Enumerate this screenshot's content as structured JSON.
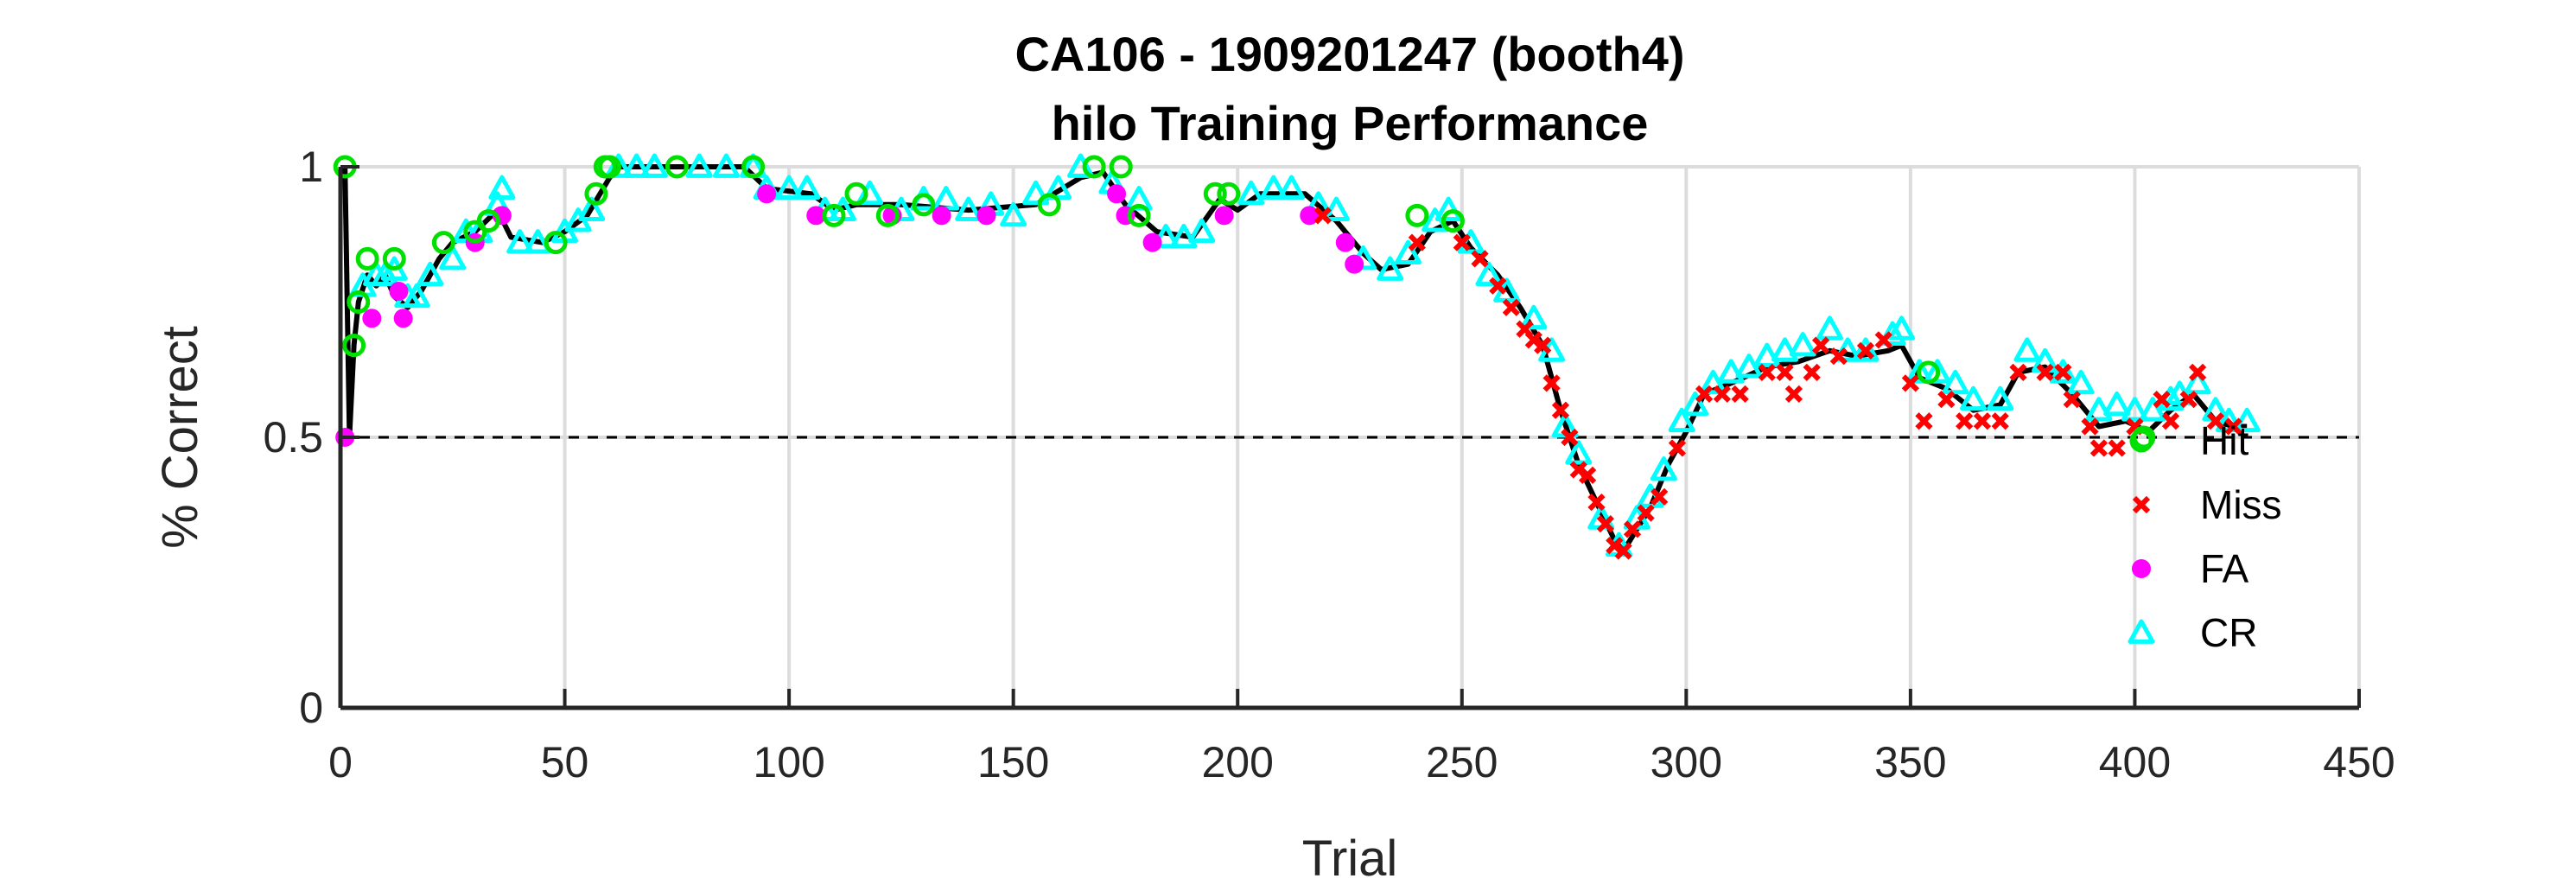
{
  "chart_data": {
    "type": "scatter",
    "title": "CA106 - 1909201247 (booth4)",
    "subtitle": "hilo Training Performance",
    "xlabel": "Trial",
    "ylabel": "% Correct",
    "xlim": [
      0,
      450
    ],
    "ylim": [
      0,
      1
    ],
    "xticks": [
      "0",
      "50",
      "100",
      "150",
      "200",
      "250",
      "300",
      "350",
      "400",
      "450"
    ],
    "yticks": [
      "0",
      "0.5",
      "1"
    ],
    "grid": true,
    "chance_line": 0.5,
    "legend_position": "right-inside",
    "colors": {
      "line": "#000000",
      "hit": "#00e000",
      "miss": "#ff0000",
      "fa": "#ff00ff",
      "cr": "#00ffff",
      "grid": "#dcdcdc"
    },
    "performance_keypoints": [
      [
        1,
        1.0
      ],
      [
        2,
        0.5
      ],
      [
        3,
        0.67
      ],
      [
        4,
        0.75
      ],
      [
        6,
        0.8
      ],
      [
        8,
        0.78
      ],
      [
        10,
        0.8
      ],
      [
        12,
        0.76
      ],
      [
        15,
        0.74
      ],
      [
        18,
        0.77
      ],
      [
        22,
        0.83
      ],
      [
        25,
        0.86
      ],
      [
        30,
        0.88
      ],
      [
        35,
        0.92
      ],
      [
        38,
        0.87
      ],
      [
        45,
        0.86
      ],
      [
        50,
        0.88
      ],
      [
        55,
        0.91
      ],
      [
        60,
        0.98
      ],
      [
        62,
        1.0
      ],
      [
        90,
        1.0
      ],
      [
        95,
        0.96
      ],
      [
        105,
        0.95
      ],
      [
        110,
        0.92
      ],
      [
        115,
        0.93
      ],
      [
        125,
        0.93
      ],
      [
        140,
        0.92
      ],
      [
        155,
        0.93
      ],
      [
        165,
        0.98
      ],
      [
        170,
        0.99
      ],
      [
        175,
        0.93
      ],
      [
        182,
        0.88
      ],
      [
        190,
        0.87
      ],
      [
        196,
        0.94
      ],
      [
        200,
        0.92
      ],
      [
        205,
        0.95
      ],
      [
        215,
        0.95
      ],
      [
        222,
        0.9
      ],
      [
        228,
        0.84
      ],
      [
        232,
        0.81
      ],
      [
        238,
        0.82
      ],
      [
        243,
        0.88
      ],
      [
        248,
        0.9
      ],
      [
        252,
        0.85
      ],
      [
        258,
        0.8
      ],
      [
        263,
        0.74
      ],
      [
        268,
        0.67
      ],
      [
        272,
        0.55
      ],
      [
        276,
        0.45
      ],
      [
        280,
        0.38
      ],
      [
        284,
        0.31
      ],
      [
        286,
        0.29
      ],
      [
        289,
        0.33
      ],
      [
        292,
        0.37
      ],
      [
        296,
        0.45
      ],
      [
        300,
        0.51
      ],
      [
        304,
        0.58
      ],
      [
        310,
        0.6
      ],
      [
        318,
        0.63
      ],
      [
        325,
        0.64
      ],
      [
        332,
        0.66
      ],
      [
        338,
        0.65
      ],
      [
        345,
        0.66
      ],
      [
        348,
        0.67
      ],
      [
        352,
        0.61
      ],
      [
        358,
        0.59
      ],
      [
        364,
        0.55
      ],
      [
        370,
        0.56
      ],
      [
        374,
        0.62
      ],
      [
        380,
        0.63
      ],
      [
        386,
        0.58
      ],
      [
        392,
        0.52
      ],
      [
        398,
        0.53
      ],
      [
        403,
        0.51
      ],
      [
        408,
        0.55
      ],
      [
        413,
        0.58
      ],
      [
        418,
        0.53
      ],
      [
        422,
        0.52
      ],
      [
        425,
        0.52
      ]
    ],
    "series": [
      {
        "name": "Hit",
        "points": [
          [
            1,
            1.0
          ],
          [
            3,
            0.67
          ],
          [
            4,
            0.75
          ],
          [
            6,
            0.83
          ],
          [
            12,
            0.83
          ],
          [
            23,
            0.86
          ],
          [
            30,
            0.88
          ],
          [
            33,
            0.9
          ],
          [
            48,
            0.86
          ],
          [
            57,
            0.95
          ],
          [
            59,
            1.0
          ],
          [
            60,
            1.0
          ],
          [
            75,
            1.0
          ],
          [
            92,
            1.0
          ],
          [
            110,
            0.91
          ],
          [
            115,
            0.95
          ],
          [
            122,
            0.91
          ],
          [
            130,
            0.93
          ],
          [
            158,
            0.93
          ],
          [
            168,
            1.0
          ],
          [
            174,
            1.0
          ],
          [
            178,
            0.91
          ],
          [
            195,
            0.95
          ],
          [
            198,
            0.95
          ],
          [
            240,
            0.91
          ],
          [
            248,
            0.9
          ],
          [
            354,
            0.62
          ],
          [
            402,
            0.5
          ]
        ]
      },
      {
        "name": "Miss",
        "points": [
          [
            219,
            0.91
          ],
          [
            240,
            0.86
          ],
          [
            250,
            0.86
          ],
          [
            254,
            0.83
          ],
          [
            258,
            0.78
          ],
          [
            261,
            0.74
          ],
          [
            264,
            0.7
          ],
          [
            266,
            0.68
          ],
          [
            268,
            0.67
          ],
          [
            270,
            0.6
          ],
          [
            272,
            0.55
          ],
          [
            274,
            0.5
          ],
          [
            276,
            0.44
          ],
          [
            278,
            0.43
          ],
          [
            280,
            0.38
          ],
          [
            282,
            0.34
          ],
          [
            284,
            0.3
          ],
          [
            286,
            0.29
          ],
          [
            288,
            0.33
          ],
          [
            291,
            0.36
          ],
          [
            294,
            0.39
          ],
          [
            298,
            0.48
          ],
          [
            304,
            0.58
          ],
          [
            308,
            0.58
          ],
          [
            312,
            0.58
          ],
          [
            318,
            0.62
          ],
          [
            322,
            0.62
          ],
          [
            324,
            0.58
          ],
          [
            328,
            0.62
          ],
          [
            330,
            0.67
          ],
          [
            334,
            0.65
          ],
          [
            340,
            0.66
          ],
          [
            344,
            0.68
          ],
          [
            350,
            0.6
          ],
          [
            353,
            0.53
          ],
          [
            358,
            0.57
          ],
          [
            362,
            0.53
          ],
          [
            366,
            0.53
          ],
          [
            370,
            0.53
          ],
          [
            374,
            0.62
          ],
          [
            380,
            0.62
          ],
          [
            384,
            0.62
          ],
          [
            386,
            0.57
          ],
          [
            390,
            0.52
          ],
          [
            392,
            0.48
          ],
          [
            396,
            0.48
          ],
          [
            400,
            0.52
          ],
          [
            406,
            0.57
          ],
          [
            408,
            0.53
          ],
          [
            412,
            0.57
          ],
          [
            414,
            0.62
          ],
          [
            418,
            0.53
          ],
          [
            422,
            0.52
          ]
        ]
      },
      {
        "name": "FA",
        "points": [
          [
            1,
            0.5
          ],
          [
            7,
            0.72
          ],
          [
            13,
            0.77
          ],
          [
            14,
            0.72
          ],
          [
            30,
            0.86
          ],
          [
            36,
            0.91
          ],
          [
            95,
            0.95
          ],
          [
            106,
            0.91
          ],
          [
            123,
            0.91
          ],
          [
            134,
            0.91
          ],
          [
            144,
            0.91
          ],
          [
            173,
            0.95
          ],
          [
            175,
            0.91
          ],
          [
            181,
            0.86
          ],
          [
            197,
            0.91
          ],
          [
            216,
            0.91
          ],
          [
            224,
            0.86
          ],
          [
            226,
            0.82
          ]
        ]
      },
      {
        "name": "CR",
        "points": [
          [
            5,
            0.78
          ],
          [
            8,
            0.8
          ],
          [
            10,
            0.8
          ],
          [
            12,
            0.81
          ],
          [
            15,
            0.76
          ],
          [
            17,
            0.76
          ],
          [
            20,
            0.8
          ],
          [
            25,
            0.83
          ],
          [
            28,
            0.88
          ],
          [
            31,
            0.88
          ],
          [
            35,
            0.93
          ],
          [
            36,
            0.96
          ],
          [
            40,
            0.86
          ],
          [
            44,
            0.86
          ],
          [
            50,
            0.88
          ],
          [
            53,
            0.9
          ],
          [
            56,
            0.92
          ],
          [
            62,
            1.0
          ],
          [
            66,
            1.0
          ],
          [
            70,
            1.0
          ],
          [
            80,
            1.0
          ],
          [
            86,
            1.0
          ],
          [
            92,
            1.0
          ],
          [
            95,
            0.96
          ],
          [
            100,
            0.96
          ],
          [
            104,
            0.96
          ],
          [
            108,
            0.92
          ],
          [
            112,
            0.92
          ],
          [
            118,
            0.95
          ],
          [
            125,
            0.92
          ],
          [
            130,
            0.94
          ],
          [
            135,
            0.94
          ],
          [
            140,
            0.92
          ],
          [
            145,
            0.93
          ],
          [
            150,
            0.91
          ],
          [
            155,
            0.95
          ],
          [
            160,
            0.96
          ],
          [
            165,
            1.0
          ],
          [
            172,
            0.97
          ],
          [
            178,
            0.94
          ],
          [
            184,
            0.87
          ],
          [
            188,
            0.87
          ],
          [
            192,
            0.88
          ],
          [
            203,
            0.95
          ],
          [
            208,
            0.96
          ],
          [
            212,
            0.96
          ],
          [
            218,
            0.93
          ],
          [
            222,
            0.92
          ],
          [
            228,
            0.83
          ],
          [
            234,
            0.81
          ],
          [
            238,
            0.84
          ],
          [
            244,
            0.9
          ],
          [
            247,
            0.92
          ],
          [
            252,
            0.86
          ],
          [
            256,
            0.8
          ],
          [
            260,
            0.77
          ],
          [
            266,
            0.72
          ],
          [
            270,
            0.66
          ],
          [
            273,
            0.52
          ],
          [
            276,
            0.47
          ],
          [
            281,
            0.35
          ],
          [
            285,
            0.3
          ],
          [
            289,
            0.35
          ],
          [
            292,
            0.39
          ],
          [
            295,
            0.44
          ],
          [
            299,
            0.53
          ],
          [
            302,
            0.56
          ],
          [
            306,
            0.6
          ],
          [
            310,
            0.62
          ],
          [
            314,
            0.63
          ],
          [
            318,
            0.65
          ],
          [
            322,
            0.66
          ],
          [
            326,
            0.67
          ],
          [
            332,
            0.7
          ],
          [
            336,
            0.66
          ],
          [
            340,
            0.66
          ],
          [
            346,
            0.69
          ],
          [
            348,
            0.7
          ],
          [
            352,
            0.62
          ],
          [
            356,
            0.62
          ],
          [
            360,
            0.6
          ],
          [
            364,
            0.57
          ],
          [
            370,
            0.57
          ],
          [
            376,
            0.66
          ],
          [
            380,
            0.64
          ],
          [
            384,
            0.62
          ],
          [
            388,
            0.6
          ],
          [
            392,
            0.55
          ],
          [
            396,
            0.56
          ],
          [
            400,
            0.55
          ],
          [
            404,
            0.55
          ],
          [
            408,
            0.57
          ],
          [
            410,
            0.58
          ],
          [
            414,
            0.6
          ],
          [
            418,
            0.55
          ],
          [
            421,
            0.53
          ],
          [
            425,
            0.53
          ]
        ]
      }
    ]
  }
}
